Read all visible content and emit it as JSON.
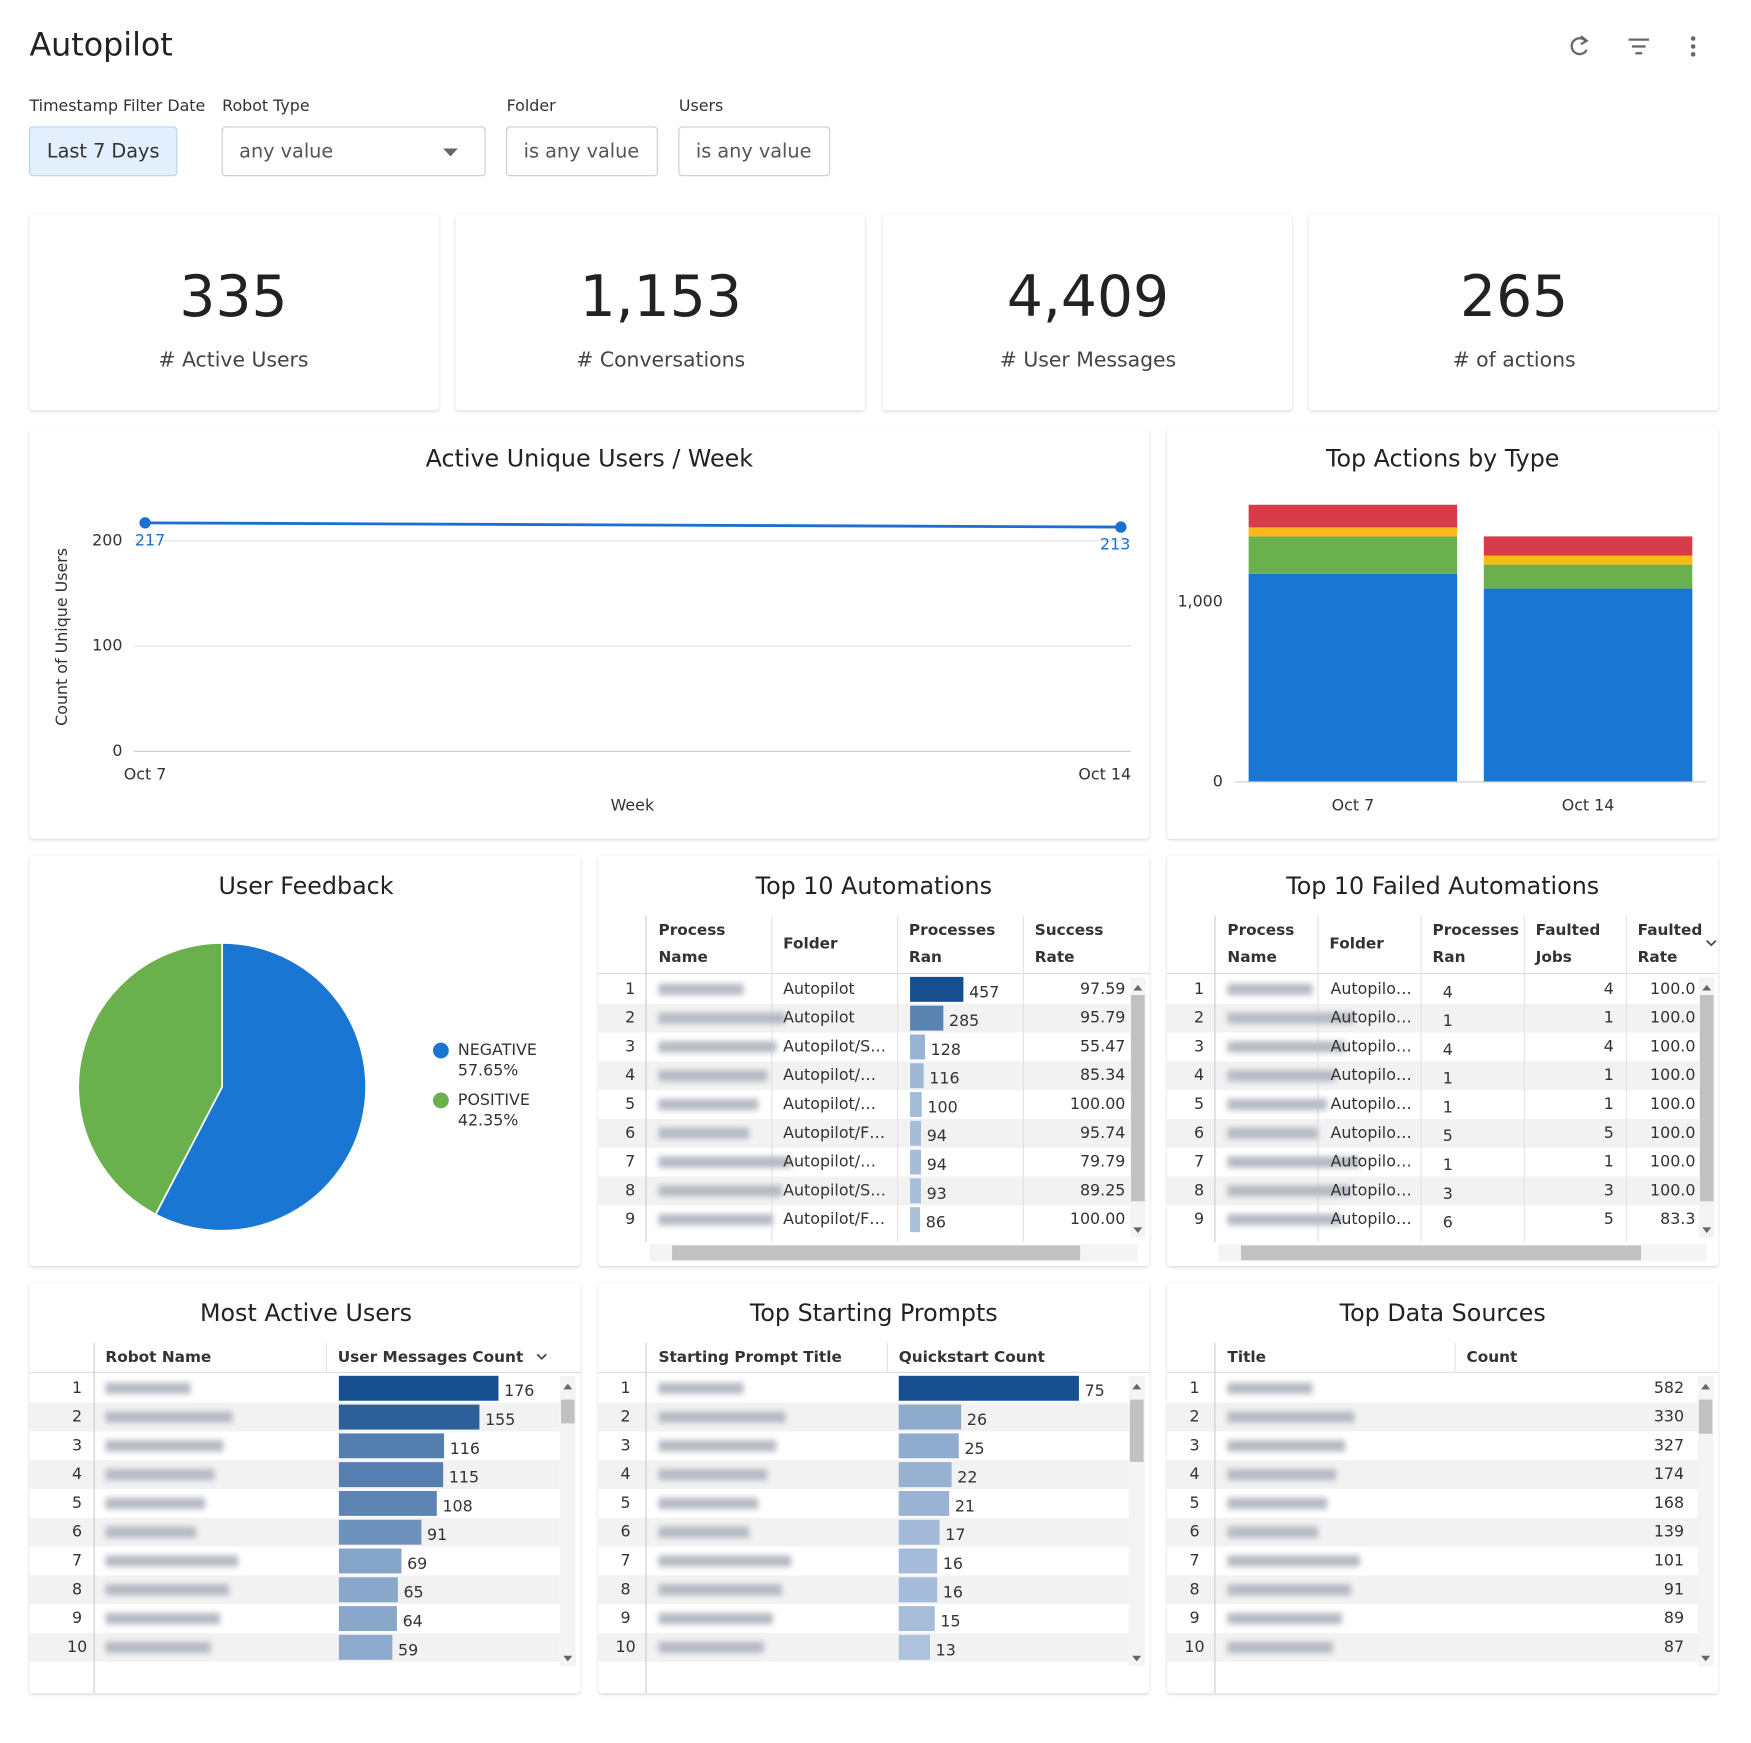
{
  "header": {
    "title": "Autopilot"
  },
  "filters": [
    {
      "label": "Timestamp Filter Date",
      "value": "Last 7 Days"
    },
    {
      "label": "Robot Type",
      "value": "any value"
    },
    {
      "label": "Folder",
      "value": "is any value"
    },
    {
      "label": "Users",
      "value": "is any value"
    }
  ],
  "kpis": [
    {
      "value": "335",
      "label": "# Active Users"
    },
    {
      "value": "1,153",
      "label": "# Conversations"
    },
    {
      "value": "4,409",
      "label": "# User Messages"
    },
    {
      "value": "265",
      "label": "# of actions"
    }
  ],
  "chart_data": [
    {
      "type": "line",
      "title": "Active Unique Users / Week",
      "x_label": "Week",
      "y_label": "Count of Unique Users",
      "categories": [
        "Oct 7",
        "Oct 14"
      ],
      "series": [
        {
          "color": "#1a6fd1",
          "values": [
            217,
            213
          ]
        }
      ],
      "ylim": [
        0,
        240
      ],
      "yticks": [
        0,
        100,
        200
      ],
      "grid": true
    },
    {
      "type": "bar",
      "stacked": true,
      "title": "Top Actions by Type",
      "categories": [
        "Oct 7",
        "Oct 14"
      ],
      "series": [
        {
          "color": "#1976d2",
          "values": [
            1157,
            1075
          ]
        },
        {
          "color": "#6ab04c",
          "values": [
            208,
            133
          ]
        },
        {
          "color": "#f9b916",
          "values": [
            50,
            50
          ]
        },
        {
          "color": "#d63c4a",
          "values": [
            126,
            107
          ]
        }
      ],
      "ylim": [
        0,
        1600
      ],
      "yticks": [
        0,
        {
          "value": 1000,
          "label": "1,000"
        }
      ]
    },
    {
      "type": "pie",
      "title": "User Feedback",
      "categories": [
        "NEGATIVE",
        "POSITIVE"
      ],
      "values": [
        57.65,
        42.35
      ],
      "value_labels": [
        "57.65%",
        "42.35%"
      ],
      "colors": [
        "#1976d2",
        "#6ab04c"
      ]
    }
  ],
  "tables": [
    {
      "title": "Top 10 Automations",
      "columns": [
        "Process Name",
        "Folder",
        "Processes Ran",
        "Success Rate"
      ],
      "rows": [
        {
          "index": 1,
          "folder": "Autopilot",
          "ran": 457,
          "rate": "97.59"
        },
        {
          "index": 2,
          "folder": "Autopilot",
          "ran": 285,
          "rate": "95.79"
        },
        {
          "index": 3,
          "folder": "Autopilot/S…",
          "ran": 128,
          "rate": "55.47"
        },
        {
          "index": 4,
          "folder": "Autopilot/…",
          "ran": 116,
          "rate": "85.34"
        },
        {
          "index": 5,
          "folder": "Autopilot/…",
          "ran": 100,
          "rate": "100.00"
        },
        {
          "index": 6,
          "folder": "Autopilot/F…",
          "ran": 94,
          "rate": "95.74"
        },
        {
          "index": 7,
          "folder": "Autopilot/…",
          "ran": 94,
          "rate": "79.79"
        },
        {
          "index": 8,
          "folder": "Autopilot/S…",
          "ran": 93,
          "rate": "89.25"
        },
        {
          "index": 9,
          "folder": "Autopilot/F…",
          "ran": 86,
          "rate": "100.00"
        }
      ]
    },
    {
      "title": "Top 10 Failed Automations",
      "columns": [
        "Process Name",
        "Folder",
        "Processes Ran",
        "Faulted Jobs",
        "Faulted Rate"
      ],
      "rows": [
        {
          "index": 1,
          "folder": "Autopilo…",
          "ran": 4,
          "faulted": 4,
          "rate": "100.0"
        },
        {
          "index": 2,
          "folder": "Autopilo…",
          "ran": 1,
          "faulted": 1,
          "rate": "100.0"
        },
        {
          "index": 3,
          "folder": "Autopilo…",
          "ran": 4,
          "faulted": 4,
          "rate": "100.0"
        },
        {
          "index": 4,
          "folder": "Autopilo…",
          "ran": 1,
          "faulted": 1,
          "rate": "100.0"
        },
        {
          "index": 5,
          "folder": "Autopilo…",
          "ran": 1,
          "faulted": 1,
          "rate": "100.0"
        },
        {
          "index": 6,
          "folder": "Autopilo…",
          "ran": 5,
          "faulted": 5,
          "rate": "100.0"
        },
        {
          "index": 7,
          "folder": "Autopilo…",
          "ran": 1,
          "faulted": 1,
          "rate": "100.0"
        },
        {
          "index": 8,
          "folder": "Autopilo…",
          "ran": 3,
          "faulted": 3,
          "rate": "100.0"
        },
        {
          "index": 9,
          "folder": "Autopilo…",
          "ran": 6,
          "faulted": 5,
          "rate": "83.3"
        }
      ]
    },
    {
      "title": "Most Active Users",
      "columns": [
        "Robot Name",
        "User Messages Count"
      ],
      "rows": [
        {
          "index": 1,
          "count": 176
        },
        {
          "index": 2,
          "count": 155
        },
        {
          "index": 3,
          "count": 116
        },
        {
          "index": 4,
          "count": 115
        },
        {
          "index": 5,
          "count": 108
        },
        {
          "index": 6,
          "count": 91
        },
        {
          "index": 7,
          "count": 69
        },
        {
          "index": 8,
          "count": 65
        },
        {
          "index": 9,
          "count": 64
        },
        {
          "index": 10,
          "count": 59
        }
      ]
    },
    {
      "title": "Top Starting Prompts",
      "columns": [
        "Starting Prompt Title",
        "Quickstart Count"
      ],
      "rows": [
        {
          "index": 1,
          "count": 75
        },
        {
          "index": 2,
          "count": 26
        },
        {
          "index": 3,
          "count": 25
        },
        {
          "index": 4,
          "count": 22
        },
        {
          "index": 5,
          "count": 21
        },
        {
          "index": 6,
          "count": 17
        },
        {
          "index": 7,
          "count": 16
        },
        {
          "index": 8,
          "count": 16
        },
        {
          "index": 9,
          "count": 15
        },
        {
          "index": 10,
          "count": 13
        }
      ]
    },
    {
      "title": "Top Data Sources",
      "columns": [
        "Title",
        "Count"
      ],
      "rows": [
        {
          "index": 1,
          "count": 582
        },
        {
          "index": 2,
          "count": 330
        },
        {
          "index": 3,
          "count": 327
        },
        {
          "index": 4,
          "count": 174
        },
        {
          "index": 5,
          "count": 168
        },
        {
          "index": 6,
          "count": 139
        },
        {
          "index": 7,
          "count": 101
        },
        {
          "index": 8,
          "count": 91
        },
        {
          "index": 9,
          "count": 89
        },
        {
          "index": 10,
          "count": 87
        }
      ]
    }
  ]
}
